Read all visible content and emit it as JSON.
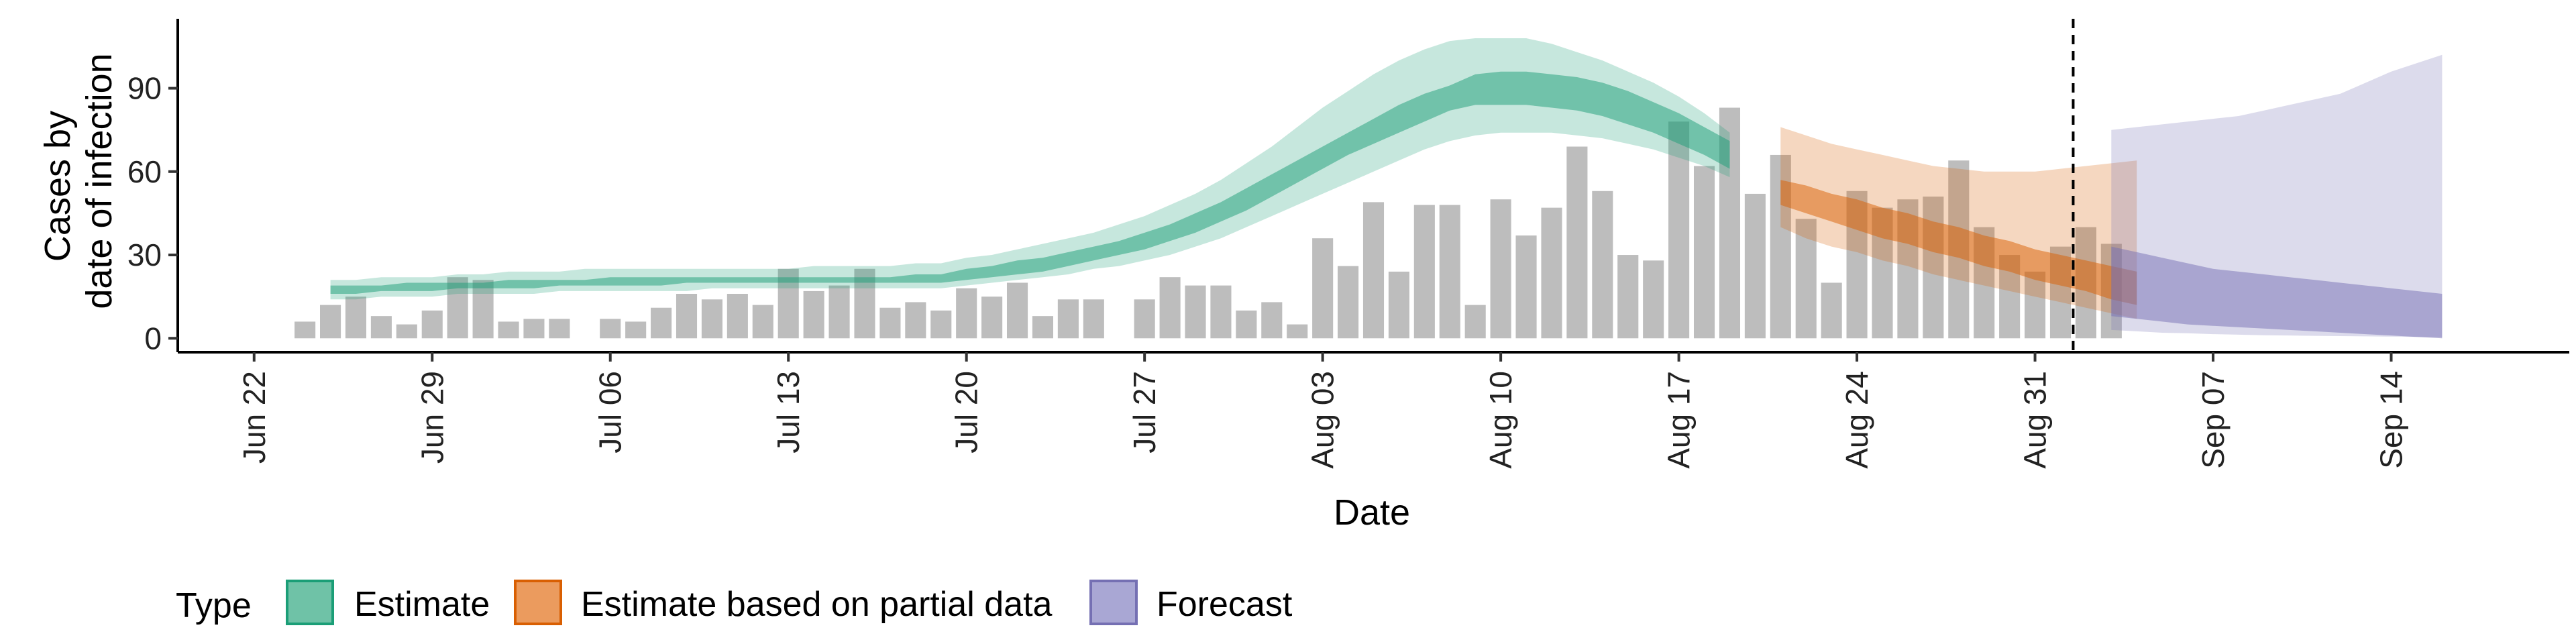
{
  "chart_data": {
    "type": "bar+ribbon",
    "xlabel": "Date",
    "ylabel_lines": [
      "Cases by",
      "date of infection"
    ],
    "x_domain": [
      "2020-06-19",
      "2020-09-21"
    ],
    "ylim": [
      -5,
      115
    ],
    "yticks": [
      0,
      30,
      60,
      90
    ],
    "xticks": [
      {
        "date": "2020-06-22",
        "label": "Jun 22"
      },
      {
        "date": "2020-06-29",
        "label": "Jun 29"
      },
      {
        "date": "2020-07-06",
        "label": "Jul 06"
      },
      {
        "date": "2020-07-13",
        "label": "Jul 13"
      },
      {
        "date": "2020-07-20",
        "label": "Jul 20"
      },
      {
        "date": "2020-07-27",
        "label": "Jul 27"
      },
      {
        "date": "2020-08-03",
        "label": "Aug 03"
      },
      {
        "date": "2020-08-10",
        "label": "Aug 10"
      },
      {
        "date": "2020-08-17",
        "label": "Aug 17"
      },
      {
        "date": "2020-08-24",
        "label": "Aug 24"
      },
      {
        "date": "2020-08-31",
        "label": "Aug 31"
      },
      {
        "date": "2020-09-07",
        "label": "Sep 07"
      },
      {
        "date": "2020-09-14",
        "label": "Sep 14"
      }
    ],
    "forecast_start_line": "2020-09-02",
    "cases": {
      "start_date": "2020-06-24",
      "values": [
        6,
        12,
        15,
        8,
        5,
        10,
        22,
        21,
        6,
        7,
        7,
        null,
        7,
        6,
        11,
        16,
        14,
        16,
        12,
        25,
        17,
        19,
        25,
        11,
        13,
        10,
        18,
        15,
        20,
        8,
        14,
        14,
        null,
        14,
        22,
        19,
        19,
        10,
        13,
        5,
        36,
        26,
        49,
        24,
        48,
        48,
        12,
        50,
        37,
        47,
        69,
        53,
        30,
        28,
        78,
        62,
        83,
        52,
        66,
        43,
        20,
        53,
        47,
        50,
        51,
        64,
        40,
        30,
        24,
        33,
        40,
        34
      ]
    },
    "series": [
      {
        "name": "Estimate",
        "color": "#1b9e77",
        "start_date": "2020-06-25",
        "outer_lower": [
          14,
          14,
          15,
          15,
          15,
          16,
          16,
          16,
          16,
          17,
          17,
          17,
          17,
          17,
          17,
          18,
          18,
          18,
          18,
          18,
          18,
          18,
          18,
          18,
          18,
          19,
          20,
          21,
          22,
          23,
          25,
          26,
          28,
          30,
          33,
          36,
          40,
          44,
          48,
          52,
          56,
          60,
          64,
          68,
          71,
          73,
          74,
          74,
          74,
          73,
          72,
          70,
          68,
          65,
          62,
          58
        ],
        "inner_lower": [
          16,
          16,
          17,
          17,
          17,
          18,
          18,
          18,
          18,
          19,
          19,
          19,
          19,
          19,
          20,
          20,
          20,
          20,
          20,
          20,
          20,
          20,
          20,
          20,
          20,
          21,
          22,
          23,
          24,
          26,
          28,
          30,
          32,
          35,
          38,
          42,
          46,
          51,
          56,
          61,
          66,
          70,
          74,
          78,
          82,
          84,
          84,
          84,
          83,
          82,
          80,
          77,
          74,
          70,
          66,
          61
        ],
        "inner_upper": [
          19,
          19,
          19,
          20,
          20,
          20,
          20,
          21,
          21,
          21,
          21,
          22,
          22,
          22,
          22,
          22,
          22,
          22,
          22,
          22,
          22,
          22,
          22,
          23,
          23,
          25,
          26,
          28,
          29,
          31,
          33,
          35,
          38,
          41,
          45,
          49,
          54,
          59,
          64,
          69,
          74,
          79,
          84,
          88,
          91,
          95,
          96,
          96,
          95,
          94,
          92,
          89,
          85,
          81,
          76,
          71
        ],
        "outer_upper": [
          21,
          21,
          22,
          22,
          22,
          23,
          23,
          24,
          24,
          24,
          25,
          25,
          25,
          25,
          25,
          25,
          25,
          25,
          25,
          26,
          26,
          26,
          26,
          27,
          27,
          29,
          30,
          32,
          34,
          36,
          38,
          41,
          44,
          48,
          52,
          57,
          63,
          69,
          76,
          83,
          89,
          95,
          100,
          104,
          107,
          108,
          108,
          108,
          106,
          103,
          100,
          96,
          92,
          87,
          81,
          74
        ]
      },
      {
        "name": "Estimate based on partial data",
        "color": "#d95f02",
        "start_date": "2020-08-21",
        "outer_lower": [
          40,
          36,
          33,
          31,
          28,
          26,
          23,
          21,
          19,
          17,
          15,
          13,
          11,
          9,
          7
        ],
        "inner_lower": [
          48,
          45,
          42,
          39,
          36,
          34,
          31,
          29,
          26,
          24,
          21,
          19,
          17,
          14,
          12
        ],
        "inner_upper": [
          57,
          55,
          52,
          50,
          47,
          45,
          42,
          40,
          37,
          35,
          32,
          30,
          28,
          26,
          24
        ],
        "outer_upper": [
          76,
          73,
          70,
          68,
          66,
          64,
          62,
          61,
          60,
          60,
          60,
          61,
          62,
          63,
          64
        ]
      },
      {
        "name": "Forecast",
        "color": "#7570b3",
        "start_date": "2020-09-03",
        "outer_lower": [
          3,
          2.5,
          2,
          1.8,
          1.5,
          1.3,
          1.1,
          1,
          0.9,
          0.8,
          0.7,
          0.6,
          0.5,
          0.5
        ],
        "inner_lower": [
          8,
          7,
          6,
          5,
          4.5,
          4,
          3.5,
          3,
          2.5,
          2,
          1.5,
          1,
          0.5,
          0
        ],
        "inner_upper": [
          33,
          31,
          29,
          27,
          25,
          24,
          23,
          22,
          21,
          20,
          19,
          18,
          17,
          16
        ],
        "outer_upper": [
          75,
          76,
          77,
          78,
          79,
          80,
          82,
          84,
          86,
          88,
          92,
          96,
          99,
          102
        ]
      }
    ]
  },
  "legend": {
    "title": "Type",
    "items": [
      "Estimate",
      "Estimate based on partial data",
      "Forecast"
    ]
  }
}
